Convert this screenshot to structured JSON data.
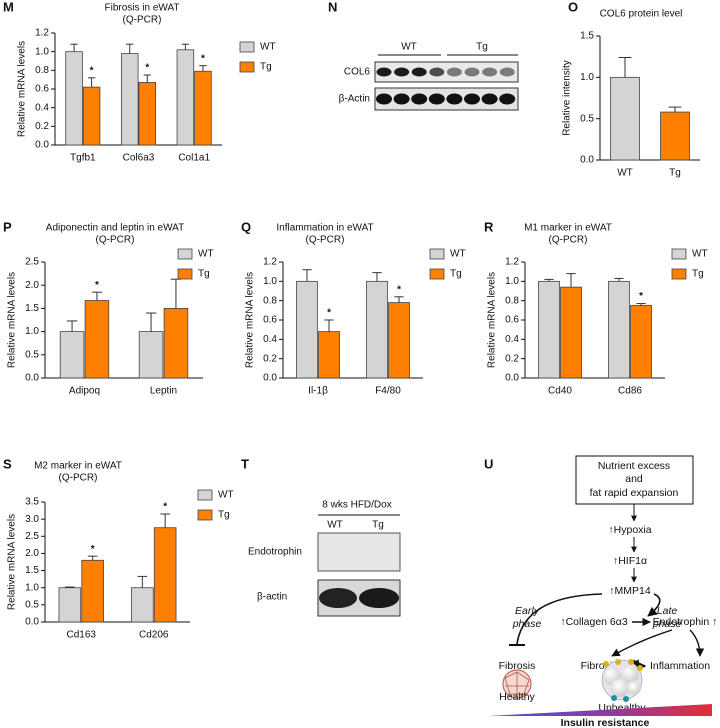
{
  "chart_data": [
    {
      "label": "M",
      "type": "bar",
      "title": "Fibrosis in eWAT",
      "subtitle": "(Q-PCR)",
      "y_label": "Relative mRNA levels",
      "categories": [
        "Tgfb1",
        "Col6a3",
        "Col1a1"
      ],
      "series": [
        {
          "name": "WT",
          "color": "#d4d4d4",
          "values": [
            1.0,
            0.98,
            1.02
          ],
          "errors": [
            0.08,
            0.1,
            0.06
          ]
        },
        {
          "name": "Tg",
          "color": "#ff8000",
          "values": [
            0.62,
            0.67,
            0.79
          ],
          "errors": [
            0.1,
            0.08,
            0.06
          ],
          "significance": [
            "*",
            "*",
            "*"
          ]
        }
      ],
      "ylim": [
        0,
        1.2
      ],
      "yticks": [
        {
          "value": 0,
          "label": "0.0"
        },
        0.2,
        0.4,
        0.6,
        0.8,
        {
          "value": 1,
          "label": "1.0"
        },
        1.2
      ],
      "legend": "right"
    },
    {
      "label": "O",
      "type": "bar",
      "title": "COL6 protein level",
      "y_label": "Relative intensity",
      "categories": [
        "WT",
        "Tg"
      ],
      "values": [
        1.0,
        0.58
      ],
      "errors": [
        0.24,
        0.06
      ],
      "colors": [
        "#d4d4d4",
        "#ff8000"
      ],
      "ylim": [
        0,
        1.5
      ],
      "yticks": [
        {
          "value": 0,
          "label": "0.0"
        },
        0.5,
        {
          "value": 1,
          "label": "1.0"
        },
        1.5
      ]
    },
    {
      "label": "P",
      "type": "bar",
      "title": "Adiponectin and leptin in eWAT",
      "subtitle": "(Q-PCR)",
      "y_label": "Relative mRNA levels",
      "categories": [
        "Adipoq",
        "Leptin"
      ],
      "series": [
        {
          "name": "WT",
          "color": "#d4d4d4",
          "values": [
            1.0,
            1.0
          ],
          "errors": [
            0.23,
            0.4
          ]
        },
        {
          "name": "Tg",
          "color": "#ff8000",
          "values": [
            1.67,
            1.5
          ],
          "errors": [
            0.18,
            0.63
          ],
          "significance": [
            "*",
            null
          ]
        }
      ],
      "ylim": [
        0,
        2.5
      ],
      "yticks": [
        {
          "value": 0,
          "label": "0.0"
        },
        0.5,
        {
          "value": 1,
          "label": "1.0"
        },
        1.5,
        {
          "value": 2,
          "label": "2.0"
        },
        2.5
      ],
      "legend": "right"
    },
    {
      "label": "Q",
      "type": "bar",
      "title": "Inflammation in eWAT",
      "subtitle": "(Q-PCR)",
      "y_label": "Relative mRNA levels",
      "categories": [
        "Il-1β",
        "F4/80"
      ],
      "series": [
        {
          "name": "WT",
          "color": "#d4d4d4",
          "values": [
            1.0,
            1.0
          ],
          "errors": [
            0.12,
            0.09
          ]
        },
        {
          "name": "Tg",
          "color": "#ff8000",
          "values": [
            0.48,
            0.78
          ],
          "errors": [
            0.12,
            0.06
          ],
          "significance": [
            "*",
            "*"
          ]
        }
      ],
      "ylim": [
        0,
        1.2
      ],
      "yticks": [
        {
          "value": 0,
          "label": "0.0"
        },
        0.2,
        0.4,
        0.6,
        0.8,
        {
          "value": 1,
          "label": "1.0"
        },
        1.2
      ],
      "legend": "right"
    },
    {
      "label": "R",
      "type": "bar",
      "title": "M1 marker in eWAT",
      "subtitle": "(Q-PCR)",
      "y_label": "Relative mRNA levels",
      "categories": [
        "Cd40",
        "Cd86"
      ],
      "series": [
        {
          "name": "WT",
          "color": "#d4d4d4",
          "values": [
            1.0,
            1.0
          ],
          "errors": [
            0.02,
            0.03
          ]
        },
        {
          "name": "Tg",
          "color": "#ff8000",
          "values": [
            0.94,
            0.75
          ],
          "errors": [
            0.14,
            0.02
          ],
          "significance": [
            null,
            "*"
          ]
        }
      ],
      "ylim": [
        0,
        1.2
      ],
      "yticks": [
        {
          "value": 0,
          "label": "0.0"
        },
        0.2,
        0.4,
        0.6,
        0.8,
        {
          "value": 1,
          "label": "1.0"
        },
        1.2
      ],
      "legend": "right"
    },
    {
      "label": "S",
      "type": "bar",
      "title": "M2 marker in eWAT",
      "subtitle": "(Q-PCR)",
      "y_label": "Relative mRNA levels",
      "categories": [
        "Cd163",
        "Cd206"
      ],
      "series": [
        {
          "name": "WT",
          "color": "#d4d4d4",
          "values": [
            1.0,
            1.0
          ],
          "errors": [
            0.02,
            0.33
          ]
        },
        {
          "name": "Tg",
          "color": "#ff8000",
          "values": [
            1.8,
            2.75
          ],
          "errors": [
            0.12,
            0.4
          ],
          "significance": [
            "*",
            "*"
          ]
        }
      ],
      "ylim": [
        0,
        3.5
      ],
      "yticks": [
        {
          "value": 0,
          "label": "0.0"
        },
        0.5,
        {
          "value": 1,
          "label": "1.0"
        },
        1.5,
        {
          "value": 2,
          "label": "2.0"
        },
        2.5,
        {
          "value": 3,
          "label": "3.0"
        },
        3.5
      ],
      "legend": "right"
    }
  ],
  "blot_n": {
    "label": "N",
    "groups": [
      "WT",
      "Tg"
    ],
    "rows": [
      "COL6",
      "β-Actin"
    ]
  },
  "blot_t": {
    "label": "T",
    "title": "8 wks HFD/Dox",
    "groups": [
      "WT",
      "Tg"
    ],
    "rows": [
      "Endotrophin",
      "β-actin"
    ]
  },
  "diagram": {
    "label": "U",
    "box": [
      "Nutrient excess",
      "and",
      "fat rapid expansion"
    ],
    "steps": [
      "↑Hypoxia",
      "↑HIF1α",
      "↑MMP14"
    ],
    "early_phase": [
      "Early",
      "phase"
    ],
    "late_phase": [
      "Late",
      "phase"
    ],
    "collagen": "↑Collagen 6α3",
    "endotrophin": "Endotrophin ↑",
    "fibrosis_left": "Fibrosis",
    "fibrosis_right": "Fibrosis",
    "inflammation": "Inflammation",
    "healthy": "Healthy",
    "unhealthy": "Unhealthy",
    "gradient": "Insulin resistance"
  }
}
